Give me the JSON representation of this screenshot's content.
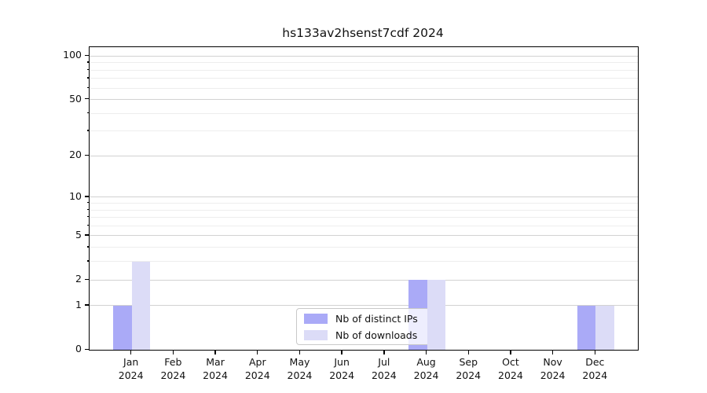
{
  "chart_data": {
    "type": "bar",
    "title": "hs133av2hsenst7cdf 2024",
    "months": [
      "Jan",
      "Feb",
      "Mar",
      "Apr",
      "May",
      "Jun",
      "Jul",
      "Aug",
      "Sep",
      "Oct",
      "Nov",
      "Dec"
    ],
    "year": "2024",
    "series": [
      {
        "name": "Nb of distinct IPs",
        "color": "#aaaaf7",
        "values": [
          1,
          0,
          0,
          0,
          0,
          0,
          0,
          2,
          0,
          0,
          0,
          1
        ]
      },
      {
        "name": "Nb of downloads",
        "color": "#dcdcf7",
        "values": [
          3,
          0,
          0,
          0,
          0,
          0,
          0,
          2,
          0,
          0,
          0,
          1
        ]
      }
    ],
    "yscale": "log1p",
    "y_major_ticks": [
      0,
      1,
      2,
      5,
      10,
      20,
      50,
      100
    ],
    "y_minor_ticks": [
      3,
      4,
      6,
      7,
      8,
      9,
      30,
      40,
      60,
      70,
      80,
      90
    ],
    "ylim": [
      0,
      115
    ],
    "grid": true,
    "legend_position": "lower-center"
  }
}
